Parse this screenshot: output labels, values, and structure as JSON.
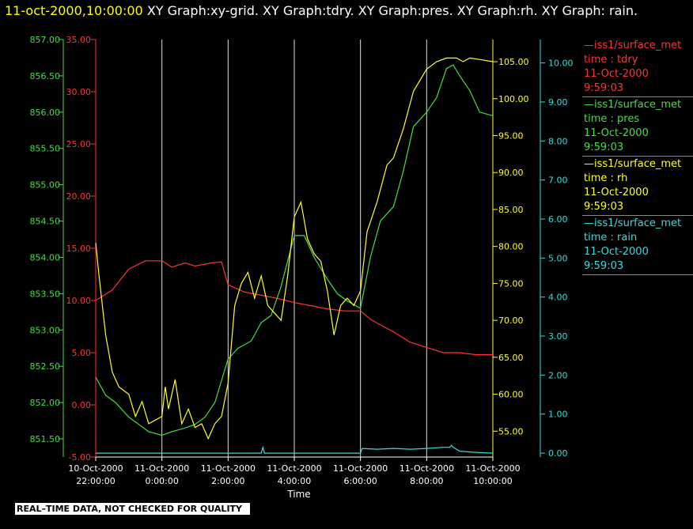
{
  "header": {
    "time": "11-oct-2000,10:00:00",
    "rest": "XY Graph:xy-grid.  XY Graph:tdry.  XY Graph:pres.  XY Graph:rh.  XY Graph: rain."
  },
  "legend": [
    {
      "line": "—iss1/surface_met",
      "field": "time : tdry",
      "date": "11-Oct-2000",
      "time": "9:59:03",
      "color": "#ff3333"
    },
    {
      "line": "—iss1/surface_met",
      "field": "time : pres",
      "date": "11-Oct-2000",
      "time": "9:59:03",
      "color": "#44dd44"
    },
    {
      "line": "—iss1/surface_met",
      "field": "time : rh",
      "date": "11-Oct-2000",
      "time": "9:59:03",
      "color": "#ffff22"
    },
    {
      "line": "—iss1/surface_met",
      "field": "time : rain",
      "date": "11-Oct-2000",
      "time": "9:59:03",
      "color": "#33dddd"
    }
  ],
  "footer_note": "REAL–TIME DATA, NOT CHECKED FOR QUALITY",
  "chart_data": {
    "type": "line",
    "xlabel": "Time",
    "x_ticks": [
      {
        "date": "10-Oct-2000",
        "time": "22:00:00",
        "h": 22
      },
      {
        "date": "11-Oct-2000",
        "time": "0:00:00",
        "h": 24
      },
      {
        "date": "11-Oct-2000",
        "time": "2:00:00",
        "h": 26
      },
      {
        "date": "11-Oct-2000",
        "time": "4:00:00",
        "h": 28
      },
      {
        "date": "11-Oct-2000",
        "time": "6:00:00",
        "h": 30
      },
      {
        "date": "11-Oct-2000",
        "time": "8:00:00",
        "h": 32
      },
      {
        "date": "11-Oct-2000",
        "time": "10:00:00",
        "h": 34
      }
    ],
    "axes": {
      "pres": {
        "color": "#44dd44",
        "range": [
          851.25,
          857.0
        ],
        "ticks": [
          "857.00",
          "856.50",
          "856.00",
          "855.50",
          "855.00",
          "854.50",
          "854.00",
          "853.50",
          "853.00",
          "852.50",
          "852.00",
          "851.50"
        ]
      },
      "tdry": {
        "color": "#ff3333",
        "range": [
          -5.0,
          35.0
        ],
        "ticks": [
          "35.00",
          "30.00",
          "25.00",
          "20.00",
          "15.00",
          "10.00",
          "5.00",
          "0.00",
          "-5.00"
        ]
      },
      "rh": {
        "color": "#ffff22",
        "range": [
          51.5,
          108.0
        ],
        "ticks": [
          "105.00",
          "100.00",
          "95.00",
          "90.00",
          "85.00",
          "80.00",
          "75.00",
          "70.00",
          "65.00",
          "60.00",
          "55.00"
        ]
      },
      "rain": {
        "color": "#33dddd",
        "range": [
          -0.1,
          10.6
        ],
        "ticks": [
          "10.00",
          "9.00",
          "8.00",
          "7.00",
          "6.00",
          "5.00",
          "4.00",
          "3.00",
          "2.00",
          "1.00",
          "0.00"
        ]
      }
    },
    "series": [
      {
        "name": "tdry",
        "axis": "tdry",
        "color": "#ff3333",
        "x": [
          22.0,
          22.5,
          23.0,
          23.5,
          24.0,
          24.3,
          24.7,
          25.0,
          25.5,
          25.8,
          26.0,
          26.5,
          27.0,
          27.5,
          28.0,
          28.5,
          29.0,
          29.5,
          30.0,
          30.3,
          30.7,
          31.0,
          31.5,
          32.0,
          32.5,
          33.0,
          33.5,
          34.0
        ],
        "y": [
          10.0,
          11.0,
          13.0,
          13.8,
          13.8,
          13.2,
          13.6,
          13.3,
          13.6,
          13.7,
          11.5,
          10.8,
          10.5,
          10.2,
          9.8,
          9.5,
          9.2,
          9.0,
          9.0,
          8.2,
          7.5,
          7.0,
          6.0,
          5.5,
          5.0,
          5.0,
          4.8,
          4.8
        ]
      },
      {
        "name": "pres",
        "axis": "pres",
        "color": "#44dd44",
        "x": [
          22.0,
          22.3,
          22.6,
          23.0,
          23.3,
          23.6,
          24.0,
          24.3,
          24.7,
          25.0,
          25.3,
          25.6,
          26.0,
          26.3,
          26.7,
          27.0,
          27.3,
          27.6,
          28.0,
          28.3,
          28.6,
          29.0,
          29.3,
          29.6,
          30.0,
          30.3,
          30.6,
          31.0,
          31.3,
          31.6,
          32.0,
          32.3,
          32.6,
          32.8,
          33.0,
          33.3,
          33.6,
          34.0
        ],
        "y": [
          852.35,
          852.1,
          852.0,
          851.8,
          851.7,
          851.6,
          851.55,
          851.6,
          851.65,
          851.7,
          851.8,
          852.0,
          852.6,
          852.75,
          852.85,
          853.1,
          853.2,
          853.6,
          854.3,
          854.3,
          854.0,
          853.7,
          853.5,
          853.4,
          853.3,
          854.0,
          854.5,
          854.7,
          855.2,
          855.8,
          856.0,
          856.2,
          856.6,
          856.65,
          856.5,
          856.3,
          856.0,
          855.95
        ]
      },
      {
        "name": "rh",
        "axis": "rh",
        "color": "#ffff22",
        "x": [
          22.0,
          22.1,
          22.3,
          22.5,
          22.7,
          23.0,
          23.2,
          23.4,
          23.6,
          23.8,
          24.0,
          24.1,
          24.2,
          24.4,
          24.6,
          24.8,
          25.0,
          25.2,
          25.4,
          25.6,
          25.8,
          26.0,
          26.2,
          26.4,
          26.6,
          26.8,
          27.0,
          27.2,
          27.4,
          27.6,
          27.8,
          28.0,
          28.2,
          28.4,
          28.6,
          28.8,
          29.0,
          29.2,
          29.4,
          29.6,
          29.8,
          30.0,
          30.2,
          30.5,
          30.8,
          31.0,
          31.3,
          31.6,
          32.0,
          32.3,
          32.6,
          32.9,
          33.1,
          33.3,
          33.6,
          34.0
        ],
        "y": [
          80.5,
          76.0,
          68.0,
          63.0,
          61.0,
          60.0,
          57.0,
          59.0,
          56.0,
          56.5,
          57.0,
          61.0,
          58.0,
          62.0,
          56.0,
          58.0,
          55.5,
          56.0,
          54.0,
          56.0,
          57.0,
          61.5,
          72.0,
          75.0,
          76.5,
          73.0,
          76.0,
          72.0,
          71.0,
          70.0,
          76.0,
          84.0,
          86.0,
          81.0,
          79.0,
          78.0,
          74.0,
          68.0,
          72.0,
          73.0,
          72.0,
          74.0,
          82.0,
          86.0,
          91.0,
          92.0,
          96.0,
          101.0,
          104.0,
          105.0,
          105.5,
          105.5,
          105.0,
          105.5,
          105.3,
          105.0
        ]
      },
      {
        "name": "rain",
        "axis": "rain",
        "color": "#33dddd",
        "x": [
          22.0,
          27.0,
          27.05,
          27.1,
          30.0,
          30.05,
          30.5,
          31.0,
          31.5,
          32.0,
          32.5,
          32.7,
          32.75,
          32.8,
          33.0,
          33.5,
          34.0
        ],
        "y": [
          0.0,
          0.0,
          0.15,
          0.0,
          0.0,
          0.12,
          0.1,
          0.12,
          0.1,
          0.12,
          0.15,
          0.15,
          0.2,
          0.15,
          0.05,
          0.02,
          0.0
        ]
      }
    ]
  }
}
